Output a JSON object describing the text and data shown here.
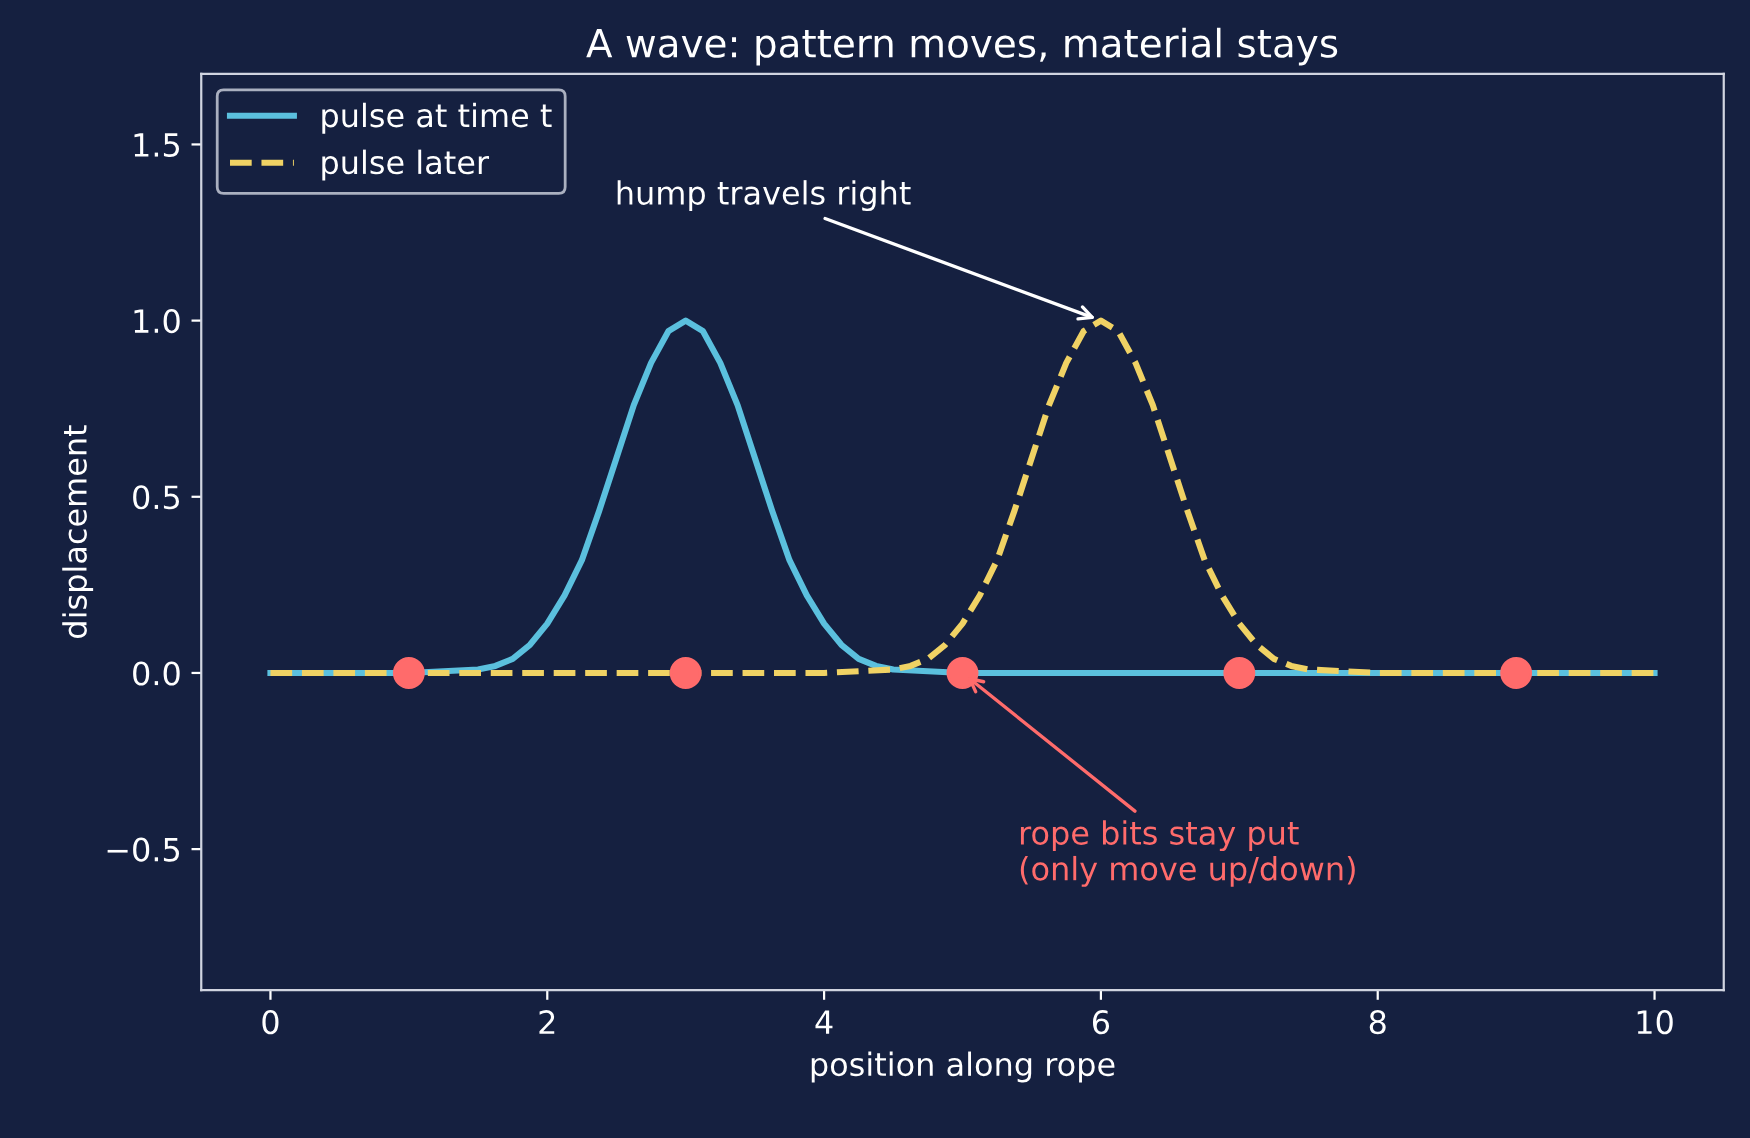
{
  "chart_data": {
    "type": "line",
    "title": "A wave: pattern moves, material stays",
    "xlabel": "position along rope",
    "ylabel": "displacement",
    "series": [
      {
        "name": "pulse at time t",
        "color": "#5bc0de",
        "line_style": "solid",
        "x": [
          0,
          1,
          1.5,
          1.625,
          1.75,
          1.875,
          2,
          2.125,
          2.25,
          2.375,
          2.5,
          2.625,
          2.75,
          2.875,
          3,
          3.125,
          3.25,
          3.375,
          3.5,
          3.625,
          3.75,
          3.875,
          4,
          4.125,
          4.25,
          4.375,
          4.5,
          5,
          10
        ],
        "values": [
          0,
          0,
          0.01,
          0.02,
          0.04,
          0.08,
          0.14,
          0.22,
          0.32,
          0.46,
          0.61,
          0.76,
          0.88,
          0.97,
          1,
          0.97,
          0.88,
          0.76,
          0.61,
          0.46,
          0.32,
          0.22,
          0.14,
          0.08,
          0.04,
          0.02,
          0.01,
          0,
          0
        ]
      },
      {
        "name": "pulse later",
        "color": "#f0d264",
        "line_style": "dashed",
        "x": [
          0,
          4,
          4.5,
          4.625,
          4.75,
          4.875,
          5,
          5.125,
          5.25,
          5.375,
          5.5,
          5.625,
          5.75,
          5.875,
          6,
          6.125,
          6.25,
          6.375,
          6.5,
          6.625,
          6.75,
          6.875,
          7,
          7.125,
          7.25,
          7.375,
          7.5,
          8,
          10
        ],
        "values": [
          0,
          0,
          0.01,
          0.02,
          0.04,
          0.08,
          0.14,
          0.22,
          0.32,
          0.46,
          0.61,
          0.76,
          0.88,
          0.97,
          1,
          0.97,
          0.88,
          0.76,
          0.61,
          0.46,
          0.32,
          0.22,
          0.14,
          0.08,
          0.04,
          0.02,
          0.01,
          0,
          0
        ]
      },
      {
        "type": "scatter",
        "color": "#ff6b6b",
        "marker": "circle",
        "x": [
          1,
          3,
          5,
          7,
          9
        ],
        "values": [
          0,
          0,
          0,
          0,
          0
        ]
      }
    ],
    "annotations": [
      {
        "text": "hump travels right",
        "x": 6,
        "y": 1
      },
      {
        "text": "rope bits stay put\n(only move up/down)",
        "x": 5,
        "y": 0
      }
    ],
    "xlim": [
      -0.5,
      10.5
    ],
    "ylim": [
      -0.9,
      1.7
    ],
    "xticks": [
      0,
      2,
      4,
      6,
      8,
      10
    ],
    "yticks": [
      {
        "value": -0.5,
        "label": "−0.5"
      },
      {
        "value": 0,
        "label": "0.0"
      },
      {
        "value": 0.5,
        "label": "0.5"
      },
      {
        "value": 1,
        "label": "1.0"
      },
      {
        "value": 1.5,
        "label": "1.5"
      }
    ],
    "legend": "top left",
    "grid": false
  }
}
